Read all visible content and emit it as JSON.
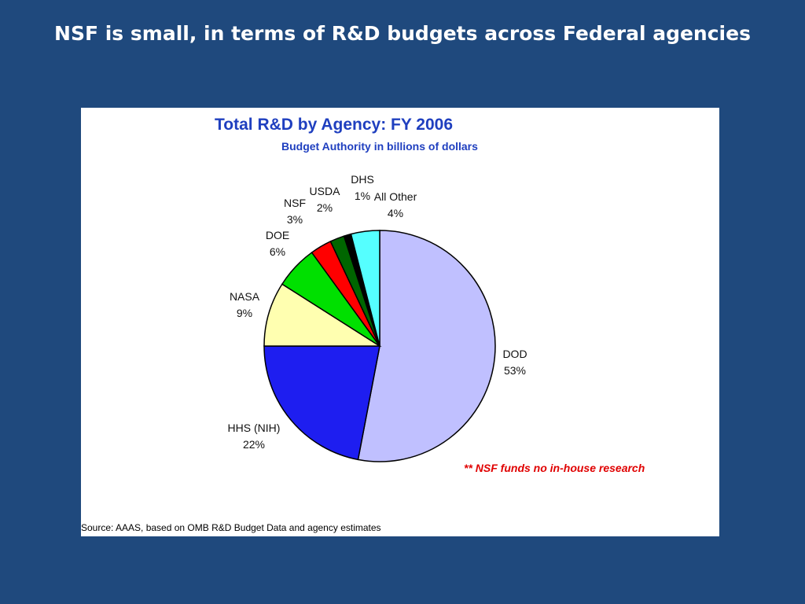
{
  "slide": {
    "title": "NSF is small, in terms of R&D budgets across Federal agencies"
  },
  "chart_data": {
    "type": "pie",
    "title": "Total R&D by Agency: FY 2006",
    "subtitle": "Budget Authority in billions of dollars",
    "slices": [
      {
        "label": "DOD",
        "value": 53,
        "color": "#c0c0ff"
      },
      {
        "label": "HHS (NIH)",
        "value": 22,
        "color": "#1e1ef0"
      },
      {
        "label": "NASA",
        "value": 9,
        "color": "#ffffb0"
      },
      {
        "label": "DOE",
        "value": 6,
        "color": "#00e000"
      },
      {
        "label": "NSF",
        "value": 3,
        "color": "#ff0000"
      },
      {
        "label": "USDA",
        "value": 2,
        "color": "#006600"
      },
      {
        "label": "DHS",
        "value": 1,
        "color": "#000000"
      },
      {
        "label": "All Other",
        "value": 4,
        "color": "#55ffff"
      }
    ],
    "footnote": "** NSF funds no in-house research",
    "source": "Source: AAAS, based on OMB R&D Budget Data and agency estimates"
  }
}
